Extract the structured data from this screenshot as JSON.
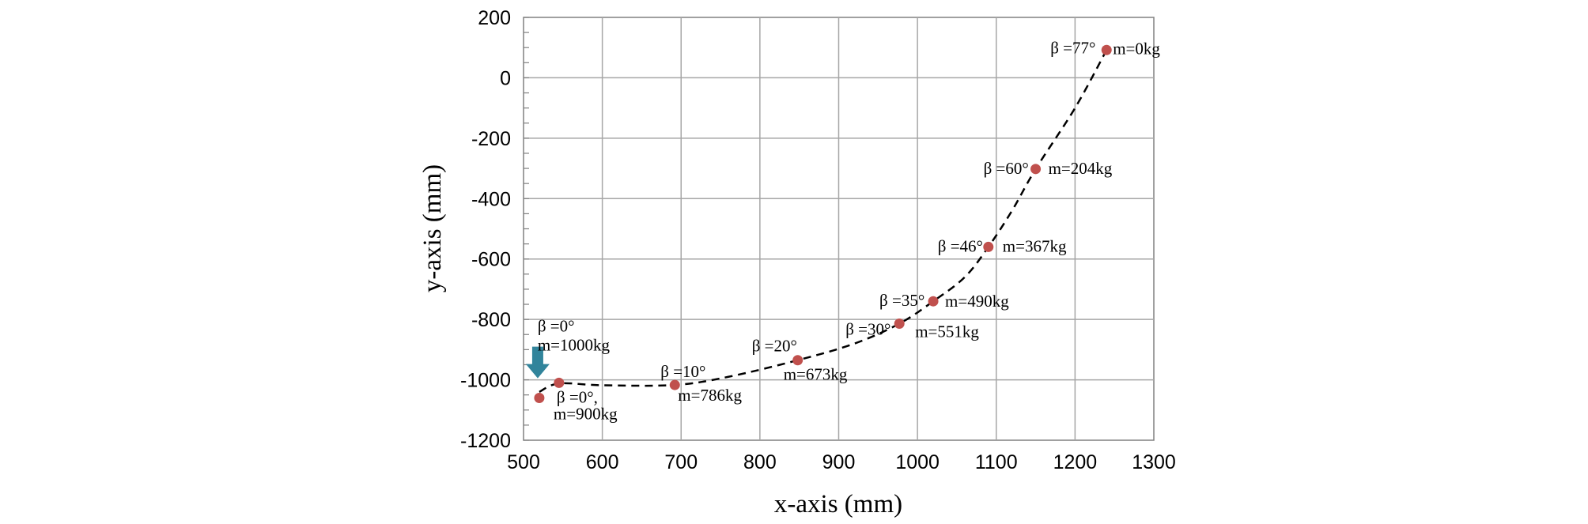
{
  "chart_data": {
    "type": "scatter",
    "title": "",
    "xlabel": "x-axis (mm)",
    "ylabel": "y-axis (mm)",
    "xlim": [
      500,
      1300
    ],
    "ylim": [
      -1200,
      200
    ],
    "xticks": [
      500,
      600,
      700,
      800,
      900,
      1000,
      1100,
      1200,
      1300
    ],
    "yticks": [
      200,
      0,
      -200,
      -400,
      -600,
      -800,
      -1000,
      -1200
    ],
    "xtick_labels": [
      "500",
      "600",
      "700",
      "800",
      "900",
      "1000",
      "1100",
      "1200",
      "1300"
    ],
    "ytick_labels": [
      "200",
      "0",
      "-200",
      "-400",
      "-600",
      "-800",
      "-1000",
      "-1200"
    ],
    "grid": true,
    "minor_ticks_y": true,
    "marker_color": "#c0504d",
    "curve_color": "#000000",
    "curve_style": "dashed",
    "arrow_color": "#31849b",
    "arrow_at": [
      518,
      -1000
    ],
    "points": [
      {
        "x": 520,
        "y": -1060,
        "labels": [
          "β =0°,",
          "m=900kg"
        ]
      },
      {
        "x": 545,
        "y": -1010,
        "labels": [
          "β =0°",
          "m=1000kg"
        ]
      },
      {
        "x": 692,
        "y": -1017,
        "labels": [
          "β =10°",
          "m=786kg"
        ]
      },
      {
        "x": 848,
        "y": -935,
        "labels": [
          "β =20°",
          "m=673kg"
        ]
      },
      {
        "x": 977,
        "y": -814,
        "labels": [
          "β =30°",
          "m=551kg"
        ]
      },
      {
        "x": 1020,
        "y": -740,
        "labels": [
          "β =35°",
          "m=490kg"
        ]
      },
      {
        "x": 1090,
        "y": -560,
        "labels": [
          "β =46°",
          "m=367kg"
        ]
      },
      {
        "x": 1150,
        "y": -302,
        "labels": [
          "β =60°",
          "m=204kg"
        ]
      },
      {
        "x": 1240,
        "y": 92,
        "labels": [
          "β =77°",
          "m=0kg"
        ]
      }
    ],
    "curve": [
      [
        520,
        -1040
      ],
      [
        545,
        -1012
      ],
      [
        600,
        -1018
      ],
      [
        692,
        -1017
      ],
      [
        760,
        -990
      ],
      [
        848,
        -935
      ],
      [
        920,
        -880
      ],
      [
        977,
        -814
      ],
      [
        1020,
        -740
      ],
      [
        1060,
        -660
      ],
      [
        1090,
        -560
      ],
      [
        1120,
        -440
      ],
      [
        1150,
        -302
      ],
      [
        1200,
        -100
      ],
      [
        1240,
        92
      ]
    ]
  }
}
